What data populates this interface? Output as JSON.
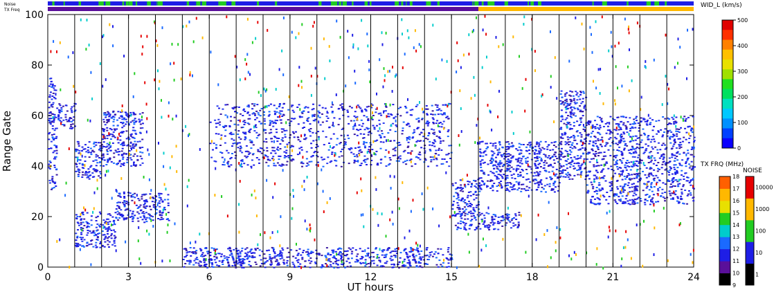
{
  "chart_data": {
    "type": "heatmap",
    "title": "",
    "xlabel": "UT hours",
    "ylabel": "Range Gate",
    "xlim": [
      0,
      24
    ],
    "ylim": [
      0,
      100
    ],
    "x_ticks": [
      "0",
      "3",
      "6",
      "9",
      "12",
      "15",
      "18",
      "21",
      "24"
    ],
    "y_ticks": [
      "0",
      "20",
      "40",
      "60",
      "80",
      "100"
    ],
    "hour_lines": [
      1,
      2,
      3,
      4,
      5,
      6,
      7,
      8,
      9,
      10,
      11,
      12,
      13,
      14,
      15,
      16,
      17,
      18,
      19,
      20,
      21,
      22,
      23
    ],
    "top_strips": [
      {
        "label": "Noise",
        "note": "mostly blue with green segments"
      },
      {
        "label": "TX Freq",
        "change_hour": 16,
        "before_color": "#5a0f9a",
        "after_color": "#ffb800"
      }
    ],
    "echo_regions": [
      {
        "x": [
          0,
          0.3
        ],
        "y": [
          30,
          75
        ],
        "desc": "early echoes"
      },
      {
        "x": [
          0.3,
          1.0
        ],
        "y": [
          55,
          65
        ],
        "desc": ""
      },
      {
        "x": [
          1.0,
          2.0
        ],
        "y": [
          35,
          50
        ],
        "desc": "dense band"
      },
      {
        "x": [
          2.0,
          3.5
        ],
        "y": [
          40,
          62
        ],
        "desc": "rising band"
      },
      {
        "x": [
          1.0,
          2.5
        ],
        "y": [
          8,
          22
        ],
        "desc": "low band"
      },
      {
        "x": [
          2.5,
          4.5
        ],
        "y": [
          18,
          30
        ],
        "desc": "low band"
      },
      {
        "x": [
          5,
          15
        ],
        "y": [
          0,
          8
        ],
        "desc": "ground scatter"
      },
      {
        "x": [
          6,
          15
        ],
        "y": [
          40,
          65
        ],
        "desc": "scattered mid echoes"
      },
      {
        "x": [
          15,
          16
        ],
        "y": [
          15,
          35
        ],
        "desc": "dense block"
      },
      {
        "x": [
          16,
          17.5
        ],
        "y": [
          15,
          22
        ],
        "desc": ""
      },
      {
        "x": [
          16,
          19
        ],
        "y": [
          30,
          50
        ],
        "desc": "mid band"
      },
      {
        "x": [
          19,
          20
        ],
        "y": [
          35,
          70
        ],
        "desc": "dense column"
      },
      {
        "x": [
          20,
          24
        ],
        "y": [
          25,
          60
        ],
        "desc": "dense band"
      }
    ],
    "colorbars": [
      {
        "title": "WID_L (km/s)",
        "ticks": [
          "0",
          "100",
          "200",
          "300",
          "400",
          "500"
        ]
      },
      {
        "title": "TX FRQ (MHz)",
        "ticks": [
          "9",
          "10",
          "11",
          "12",
          "13",
          "14",
          "15",
          "16",
          "17",
          "18"
        ]
      },
      {
        "title": "NOISE",
        "ticks": [
          "1",
          "10",
          "100",
          "1000",
          "10000"
        ]
      }
    ],
    "colors": {
      "axis": "#000000",
      "main_echo": "#1e1ee6",
      "ground_scatter": "#3a1aa0",
      "tx_before": "#5a0f9a",
      "tx_after": "#ffb800"
    }
  }
}
